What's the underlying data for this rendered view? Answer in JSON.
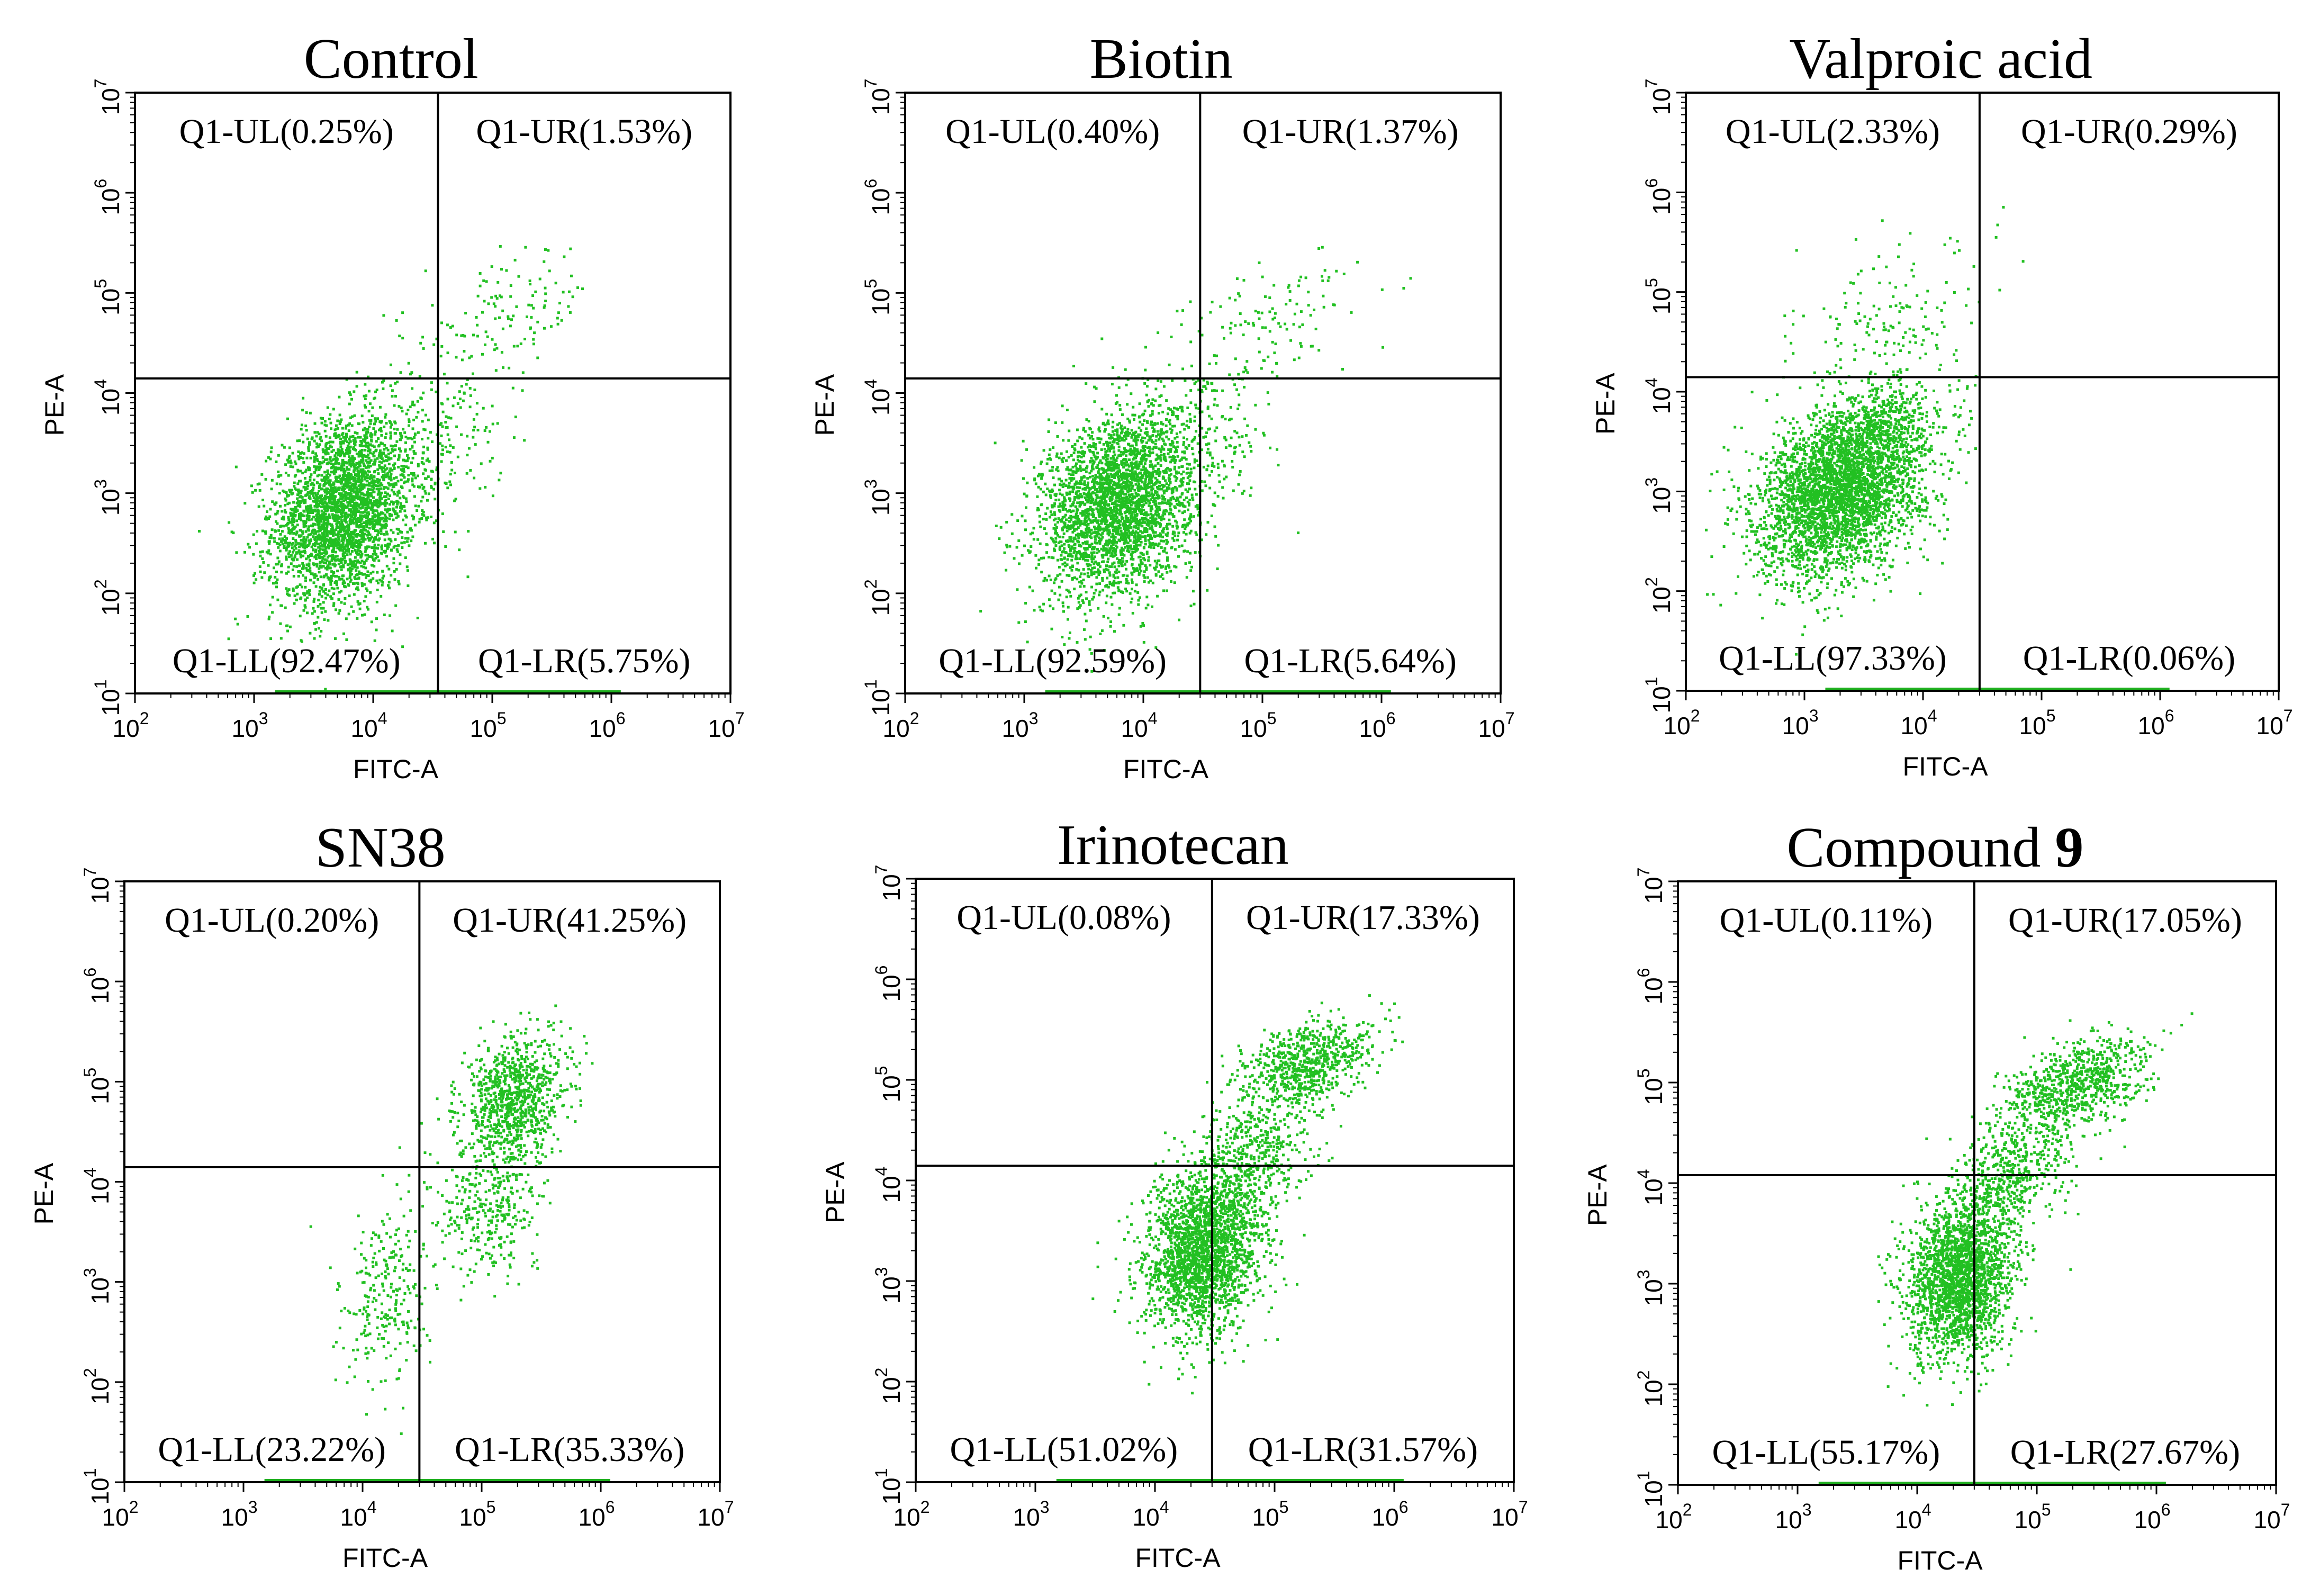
{
  "chart_data": [
    {
      "type": "scatter",
      "title": "Control",
      "xlabel": "FITC-A",
      "ylabel": "PE-A",
      "xscale": "log",
      "yscale": "log",
      "xlim": [
        100,
        10000000
      ],
      "ylim": [
        10,
        10000000
      ],
      "x_ticks": [
        "10",
        "10",
        "10",
        "10",
        "10",
        "10"
      ],
      "x_tick_exponents": [
        "2",
        "3",
        "4",
        "5",
        "6",
        "7"
      ],
      "y_ticks": [
        "10",
        "10",
        "10",
        "10",
        "10",
        "10",
        "10"
      ],
      "y_tick_exponents": [
        "1",
        "2",
        "3",
        "4",
        "5",
        "6",
        "7"
      ],
      "gate": {
        "x": 35000,
        "y": 14000
      },
      "quadrants": {
        "UL": "Q1-UL(0.25%)",
        "UR": "Q1-UR(1.53%)",
        "LL": "Q1-LL(92.47%)",
        "LR": "Q1-LR(5.75%)"
      },
      "quadrant_percent": {
        "UL": 0.25,
        "UR": 1.53,
        "LL": 92.47,
        "LR": 5.75
      },
      "populations": [
        {
          "x_center": 5500,
          "y_center": 700,
          "x_spread_decades": 0.3,
          "y_spread_decades": 0.45,
          "events": 3000
        },
        {
          "x_center": 130000,
          "y_center": 60000,
          "x_spread_decades": 0.35,
          "y_spread_decades": 0.3,
          "events": 130
        },
        {
          "x_center": 30000,
          "y_center": 3000,
          "x_spread_decades": 0.3,
          "y_spread_decades": 0.4,
          "events": 200
        }
      ]
    },
    {
      "type": "scatter",
      "title": "Biotin",
      "xlabel": "FITC-A",
      "ylabel": "PE-A",
      "xscale": "log",
      "yscale": "log",
      "xlim": [
        100,
        10000000
      ],
      "ylim": [
        10,
        10000000
      ],
      "x_ticks": [
        "10",
        "10",
        "10",
        "10",
        "10",
        "10"
      ],
      "x_tick_exponents": [
        "2",
        "3",
        "4",
        "5",
        "6",
        "7"
      ],
      "y_ticks": [
        "10",
        "10",
        "10",
        "10",
        "10",
        "10",
        "10"
      ],
      "y_tick_exponents": [
        "1",
        "2",
        "3",
        "4",
        "5",
        "6",
        "7"
      ],
      "gate": {
        "x": 30000,
        "y": 14000
      },
      "quadrants": {
        "UL": "Q1-UL(0.40%)",
        "UR": "Q1-UR(1.37%)",
        "LL": "Q1-LL(92.59%)",
        "LR": "Q1-LR(5.64%)"
      },
      "quadrant_percent": {
        "UL": 0.4,
        "UR": 1.37,
        "LL": 92.59,
        "LR": 5.64
      },
      "populations": [
        {
          "x_center": 6000,
          "y_center": 800,
          "x_spread_decades": 0.32,
          "y_spread_decades": 0.45,
          "events": 3000
        },
        {
          "x_center": 120000,
          "y_center": 60000,
          "x_spread_decades": 0.35,
          "y_spread_decades": 0.3,
          "events": 120
        },
        {
          "x_center": 30000,
          "y_center": 3000,
          "x_spread_decades": 0.3,
          "y_spread_decades": 0.4,
          "events": 220
        }
      ]
    },
    {
      "type": "scatter",
      "title": "Valproic acid",
      "xlabel": "FITC-A",
      "ylabel": "PE-A",
      "xscale": "log",
      "yscale": "log",
      "xlim": [
        100,
        10000000
      ],
      "ylim": [
        10,
        10000000
      ],
      "x_ticks": [
        "10",
        "10",
        "10",
        "10",
        "10",
        "10"
      ],
      "x_tick_exponents": [
        "2",
        "3",
        "4",
        "5",
        "6",
        "7"
      ],
      "y_ticks": [
        "10",
        "10",
        "10",
        "10",
        "10",
        "10",
        "10"
      ],
      "y_tick_exponents": [
        "1",
        "2",
        "3",
        "4",
        "5",
        "6",
        "7"
      ],
      "gate": {
        "x": 30000,
        "y": 14000
      },
      "quadrants": {
        "UL": "Q1-UL(2.33%)",
        "UR": "Q1-UR(0.29%)",
        "LL": "Q1-LL(97.33%)",
        "LR": "Q1-LR(0.06%)"
      },
      "quadrant_percent": {
        "UL": 2.33,
        "UR": 0.29,
        "LL": 97.33,
        "LR": 0.06
      },
      "populations": [
        {
          "x_center": 2000,
          "y_center": 1000,
          "x_spread_decades": 0.35,
          "y_spread_decades": 0.4,
          "events": 3200
        },
        {
          "x_center": 4000,
          "y_center": 4000,
          "x_spread_decades": 0.3,
          "y_spread_decades": 0.25,
          "events": 500
        },
        {
          "x_center": 5000,
          "y_center": 50000,
          "x_spread_decades": 0.4,
          "y_spread_decades": 0.35,
          "events": 160
        }
      ]
    },
    {
      "type": "scatter",
      "title": "SN38",
      "xlabel": "FITC-A",
      "ylabel": "PE-A",
      "xscale": "log",
      "yscale": "log",
      "xlim": [
        100,
        10000000
      ],
      "ylim": [
        10,
        10000000
      ],
      "x_ticks": [
        "10",
        "10",
        "10",
        "10",
        "10",
        "10"
      ],
      "x_tick_exponents": [
        "2",
        "3",
        "4",
        "5",
        "6",
        "7"
      ],
      "y_ticks": [
        "10",
        "10",
        "10",
        "10",
        "10",
        "10",
        "10"
      ],
      "y_tick_exponents": [
        "1",
        "2",
        "3",
        "4",
        "5",
        "6",
        "7"
      ],
      "gate": {
        "x": 30000,
        "y": 14000
      },
      "quadrants": {
        "UL": "Q1-UL(0.20%)",
        "UR": "Q1-UR(41.25%)",
        "LL": "Q1-LL(23.22%)",
        "LR": "Q1-LR(35.33%)"
      },
      "quadrant_percent": {
        "UL": 0.2,
        "UR": 41.25,
        "LL": 23.22,
        "LR": 35.33
      },
      "populations": [
        {
          "x_center": 180000,
          "y_center": 70000,
          "x_spread_decades": 0.22,
          "y_spread_decades": 0.3,
          "events": 900
        },
        {
          "x_center": 120000,
          "y_center": 6000,
          "x_spread_decades": 0.22,
          "y_spread_decades": 0.35,
          "events": 350
        },
        {
          "x_center": 15000,
          "y_center": 700,
          "x_spread_decades": 0.18,
          "y_spread_decades": 0.45,
          "events": 260
        }
      ]
    },
    {
      "type": "scatter",
      "title": "Irinotecan",
      "xlabel": "FITC-A",
      "ylabel": "PE-A",
      "xscale": "log",
      "yscale": "log",
      "xlim": [
        100,
        10000000
      ],
      "ylim": [
        10,
        10000000
      ],
      "x_ticks": [
        "10",
        "10",
        "10",
        "10",
        "10",
        "10"
      ],
      "x_tick_exponents": [
        "2",
        "3",
        "4",
        "5",
        "6",
        "7"
      ],
      "y_ticks": [
        "10",
        "10",
        "10",
        "10",
        "10",
        "10",
        "10"
      ],
      "y_tick_exponents": [
        "1",
        "2",
        "3",
        "4",
        "5",
        "6",
        "7"
      ],
      "gate": {
        "x": 30000,
        "y": 14000
      },
      "quadrants": {
        "UL": "Q1-UL(0.08%)",
        "UR": "Q1-UR(17.33%)",
        "LL": "Q1-LL(51.02%)",
        "LR": "Q1-LR(31.57%)"
      },
      "quadrant_percent": {
        "UL": 0.08,
        "UR": 17.33,
        "LL": 51.02,
        "LR": 31.57
      },
      "populations": [
        {
          "x_center": 25000,
          "y_center": 2000,
          "x_spread_decades": 0.25,
          "y_spread_decades": 0.4,
          "events": 2200
        },
        {
          "x_center": 180000,
          "y_center": 150000,
          "x_spread_decades": 0.28,
          "y_spread_decades": 0.2,
          "events": 700
        },
        {
          "x_center": 70000,
          "y_center": 20000,
          "x_spread_decades": 0.25,
          "y_spread_decades": 0.3,
          "events": 450
        }
      ]
    },
    {
      "type": "scatter",
      "title": "Compound 9",
      "title_plain": "Compound",
      "title_bold": "9",
      "xlabel": "FITC-A",
      "ylabel": "PE-A",
      "xscale": "log",
      "yscale": "log",
      "xlim": [
        100,
        10000000
      ],
      "ylim": [
        10,
        10000000
      ],
      "x_ticks": [
        "10",
        "10",
        "10",
        "10",
        "10",
        "10"
      ],
      "x_tick_exponents": [
        "2",
        "3",
        "4",
        "5",
        "6",
        "7"
      ],
      "y_ticks": [
        "10",
        "10",
        "10",
        "10",
        "10",
        "10",
        "10"
      ],
      "y_tick_exponents": [
        "1",
        "2",
        "3",
        "4",
        "5",
        "6",
        "7"
      ],
      "gate": {
        "x": 30000,
        "y": 12000
      },
      "quadrants": {
        "UL": "Q1-UL(0.11%)",
        "UR": "Q1-UR(17.05%)",
        "LL": "Q1-LL(55.17%)",
        "LR": "Q1-LR(27.67%)"
      },
      "quadrant_percent": {
        "UL": 0.11,
        "UR": 17.05,
        "LL": 55.17,
        "LR": 27.67
      },
      "populations": [
        {
          "x_center": 22000,
          "y_center": 1200,
          "x_spread_decades": 0.22,
          "y_spread_decades": 0.4,
          "events": 2200
        },
        {
          "x_center": 200000,
          "y_center": 90000,
          "x_spread_decades": 0.3,
          "y_spread_decades": 0.22,
          "events": 800
        },
        {
          "x_center": 60000,
          "y_center": 12000,
          "x_spread_decades": 0.22,
          "y_spread_decades": 0.3,
          "events": 450
        }
      ]
    }
  ],
  "colors": {
    "dots": "#22c022",
    "lines": "#000000",
    "baseline": "#1fb01f"
  }
}
